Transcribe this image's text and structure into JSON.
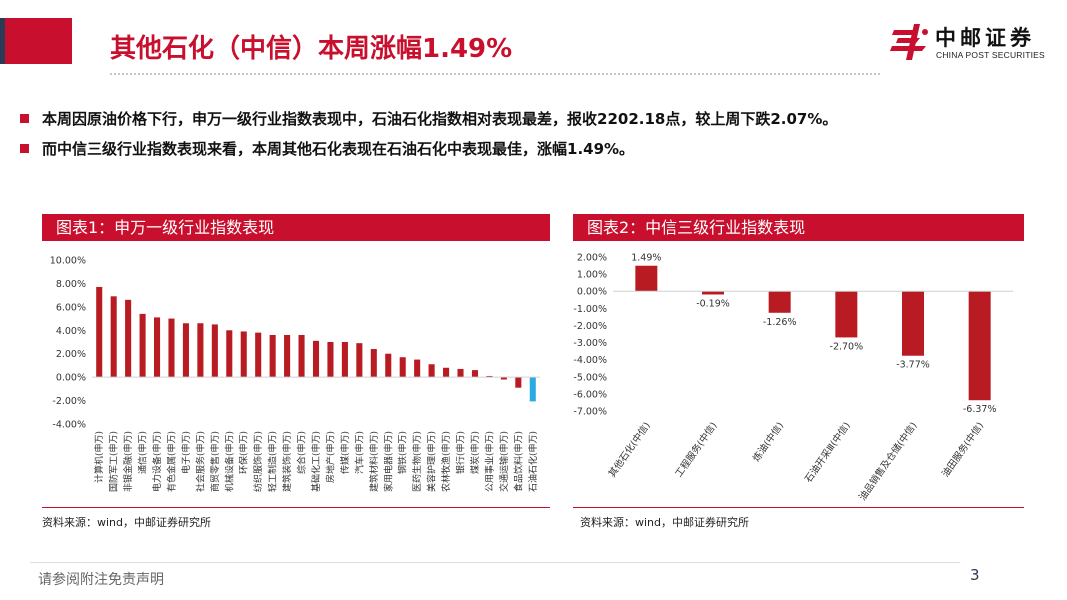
{
  "header": {
    "title": "其他石化（中信）本周涨幅1.49%",
    "logo_name": "中邮证券",
    "logo_sub": "CHINA POST SECURITIES"
  },
  "bullets": [
    "本周因原油价格下行，申万一级行业指数表现中，石油石化指数相对表现最差，报收2202.18点，较上周下跌2.07%。",
    "而中信三级行业指数表现来看，本周其他石化表现在石油石化中表现最佳，涨幅1.49%。"
  ],
  "charts": {
    "left": {
      "heading": "图表1：申万一级行业指数表现",
      "source": "资料来源：wind，中邮证券研究所"
    },
    "right": {
      "heading": "图表2：中信三级行业指数表现",
      "source": "资料来源：wind，中邮证券研究所"
    }
  },
  "footer": {
    "disclaimer": "请参阅附注免责声明",
    "page": "3"
  },
  "colors": {
    "brand_red": "#c8102e",
    "bar_red": "#b81c22",
    "highlight_blue": "#29abe2",
    "navy": "#2b3a55"
  },
  "chart_data": [
    {
      "type": "bar",
      "title": "",
      "xlabel": "",
      "ylabel": "",
      "ylim": [
        -4,
        10
      ],
      "yticks": [
        "10.00%",
        "8.00%",
        "6.00%",
        "4.00%",
        "2.00%",
        "0.00%",
        "-2.00%",
        "-4.00%"
      ],
      "grid": false,
      "categories": [
        "计算机(申万)",
        "国防军工(申万)",
        "非银金融(申万)",
        "通信(申万)",
        "电力设备(申万)",
        "有色金属(申万)",
        "电子(申万)",
        "社会服务(申万)",
        "商贸零售(申万)",
        "机械设备(申万)",
        "环保(申万)",
        "纺织服饰(申万)",
        "轻工制造(申万)",
        "建筑装饰(申万)",
        "综合(申万)",
        "基础化工(申万)",
        "房地产(申万)",
        "传媒(申万)",
        "汽车(申万)",
        "建筑材料(申万)",
        "家用电器(申万)",
        "钢铁(申万)",
        "医药生物(申万)",
        "美容护理(申万)",
        "农林牧渔(申万)",
        "银行(申万)",
        "煤炭(申万)",
        "公用事业(申万)",
        "交通运输(申万)",
        "食品饮料(申万)",
        "石油石化(申万)"
      ],
      "values": [
        7.7,
        6.9,
        6.6,
        5.4,
        5.1,
        5.0,
        4.6,
        4.6,
        4.5,
        4.0,
        3.9,
        3.8,
        3.6,
        3.6,
        3.6,
        3.1,
        3.0,
        3.0,
        2.9,
        2.4,
        2.0,
        1.7,
        1.5,
        1.1,
        0.8,
        0.7,
        0.6,
        0.1,
        -0.2,
        -0.9,
        -2.07
      ],
      "highlight": "石油石化(申万)"
    },
    {
      "type": "bar",
      "title": "",
      "xlabel": "",
      "ylabel": "",
      "ylim": [
        -7,
        2
      ],
      "yticks": [
        "2.00%",
        "1.00%",
        "0.00%",
        "-1.00%",
        "-2.00%",
        "-3.00%",
        "-4.00%",
        "-5.00%",
        "-6.00%",
        "-7.00%"
      ],
      "grid": false,
      "categories": [
        "其他石化(中信)",
        "工程服务(中信)",
        "炼油(中信)",
        "石油开采Ⅲ(中信)",
        "油品销售及仓储(中信)",
        "油田服务(中信)"
      ],
      "values": [
        1.49,
        -0.19,
        -1.26,
        -2.7,
        -3.77,
        -6.37
      ],
      "data_labels": [
        "1.49%",
        "-0.19%",
        "-1.26%",
        "-2.70%",
        "-3.77%",
        "-6.37%"
      ]
    }
  ]
}
